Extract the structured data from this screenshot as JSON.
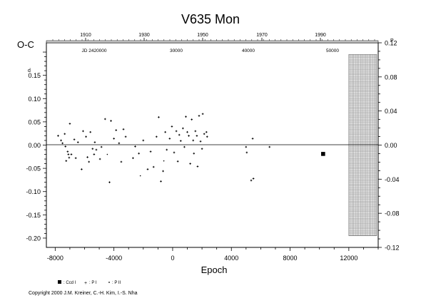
{
  "chart_data": {
    "type": "scatter",
    "title": "V635  Mon",
    "xlabel": "Epoch",
    "ylabel": "O-C",
    "ylabel_unit_left": "d",
    "ylabel_unit_right": "P",
    "xlim": [
      -8600,
      14000
    ],
    "ylim": [
      -0.22,
      0.22
    ],
    "x_ticks": [
      -8000,
      -4000,
      0,
      4000,
      8000,
      12000
    ],
    "y_ticks_left": [
      -0.2,
      -0.15,
      -0.1,
      -0.05,
      0.0,
      0.05,
      0.1,
      0.15
    ],
    "y_ticks_right": [
      "-0.12",
      "-0.08",
      "-0.04",
      "0.00",
      "0.04",
      "0.08",
      "0.12"
    ],
    "top_axis_years": [
      "1910",
      "1930",
      "1950",
      "1970",
      "1990"
    ],
    "jd_labels": [
      "JD 2420000",
      "30000",
      "40000",
      "50000"
    ],
    "hatch_region": {
      "x_start": 12000,
      "x_end": 13900,
      "y_from": -0.195,
      "y_to": 0.195
    },
    "legend": {
      "items": [
        {
          "label": ": Ccd I",
          "marker": "square"
        },
        {
          "label": ": P I",
          "marker": "plus"
        },
        {
          "label": ": P II",
          "marker": "dot"
        }
      ]
    },
    "series": [
      {
        "name": "P I",
        "marker": "plus",
        "points": [
          [
            -7800,
            0.02
          ],
          [
            -7600,
            0.01
          ],
          [
            -7500,
            0.004
          ],
          [
            -7350,
            0.024
          ],
          [
            -7300,
            -0.003
          ],
          [
            -7250,
            -0.034
          ],
          [
            -7150,
            -0.014
          ],
          [
            -7100,
            -0.02
          ],
          [
            -7050,
            -0.027
          ],
          [
            -7000,
            0.046
          ],
          [
            -6900,
            -0.02
          ],
          [
            -6700,
            0.012
          ],
          [
            -6600,
            -0.028
          ],
          [
            -6450,
            0.006
          ],
          [
            -6200,
            -0.052
          ],
          [
            -6100,
            0.03
          ],
          [
            -5900,
            0.018
          ],
          [
            -5800,
            -0.026
          ],
          [
            -5700,
            -0.036
          ],
          [
            -5600,
            0.028
          ],
          [
            -5450,
            -0.008
          ],
          [
            -5350,
            -0.02
          ],
          [
            -5300,
            0.006
          ],
          [
            -5200,
            -0.01
          ],
          [
            -4950,
            -0.03
          ],
          [
            -4850,
            -0.004
          ],
          [
            -4600,
            0.056
          ],
          [
            -4300,
            -0.08
          ],
          [
            -4200,
            0.052
          ],
          [
            -4000,
            0.014
          ],
          [
            -3850,
            0.032
          ],
          [
            -3650,
            0.004
          ],
          [
            -3500,
            -0.036
          ],
          [
            -3350,
            0.034
          ],
          [
            -3200,
            0.018
          ],
          [
            -2700,
            -0.028
          ],
          [
            -2550,
            -0.003
          ],
          [
            -2300,
            -0.018
          ],
          [
            -2000,
            0.01
          ],
          [
            -1700,
            -0.052
          ],
          [
            -1500,
            -0.014
          ],
          [
            -1300,
            -0.047
          ],
          [
            -1100,
            0.018
          ],
          [
            -950,
            0.06
          ],
          [
            -800,
            -0.078
          ],
          [
            -650,
            -0.056
          ],
          [
            -500,
            0.028
          ],
          [
            -400,
            -0.01
          ],
          [
            -200,
            0.014
          ],
          [
            -50,
            0.04
          ],
          [
            100,
            -0.016
          ],
          [
            250,
            0.03
          ],
          [
            350,
            -0.035
          ],
          [
            450,
            0.022
          ],
          [
            550,
            0.009
          ],
          [
            700,
            0.036
          ],
          [
            800,
            -0.004
          ],
          [
            900,
            0.061
          ],
          [
            1000,
            0.028
          ],
          [
            1100,
            0.02
          ],
          [
            1200,
            -0.04
          ],
          [
            1300,
            0.055
          ],
          [
            1400,
            0.01
          ],
          [
            1450,
            -0.018
          ],
          [
            1550,
            0.03
          ],
          [
            1650,
            0.02
          ],
          [
            1700,
            -0.046
          ],
          [
            1800,
            0.063
          ],
          [
            1900,
            0.008
          ],
          [
            2000,
            -0.008
          ],
          [
            2050,
            0.067
          ],
          [
            2150,
            0.024
          ],
          [
            2300,
            0.028
          ],
          [
            2350,
            0.018
          ],
          [
            5000,
            -0.004
          ],
          [
            5050,
            -0.016
          ],
          [
            5350,
            -0.076
          ],
          [
            5450,
            0.014
          ],
          [
            5500,
            -0.072
          ],
          [
            6600,
            -0.004
          ]
        ]
      },
      {
        "name": "P II",
        "marker": "dot",
        "points": [
          [
            -4450,
            -0.02
          ],
          [
            -2200,
            -0.066
          ],
          [
            -600,
            -0.034
          ]
        ]
      },
      {
        "name": "Ccd I",
        "marker": "square",
        "points": [
          [
            10250,
            -0.019
          ]
        ]
      }
    ]
  },
  "copyright": "Copyright 2000 J.M. Kreiner, C.-H. Kim, I.-S. Nha"
}
